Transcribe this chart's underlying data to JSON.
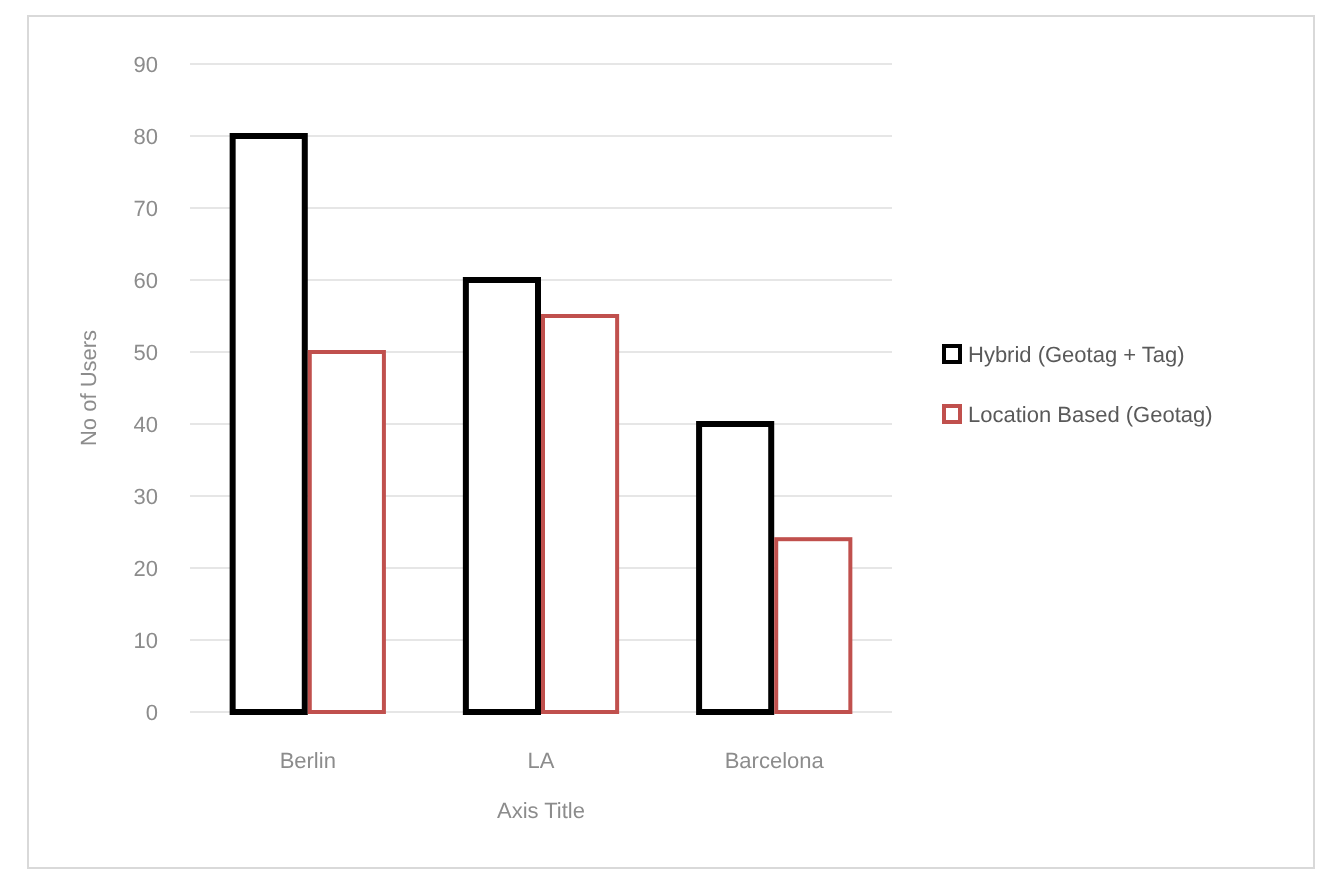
{
  "chart_data": {
    "type": "bar",
    "xlabel": "Axis Title",
    "ylabel": "No of Users",
    "categories": [
      "Berlin",
      "LA",
      "Barcelona"
    ],
    "series": [
      {
        "name": "Hybrid (Geotag + Tag)",
        "color": "#000000",
        "values": [
          80,
          60,
          40
        ]
      },
      {
        "name": "Location Based (Geotag)",
        "color": "#c0504d",
        "values": [
          50,
          55,
          24
        ]
      }
    ],
    "ylim": [
      0,
      90
    ],
    "yticks": [
      0,
      10,
      20,
      30,
      40,
      50,
      60,
      70,
      80,
      90
    ],
    "grid": "y",
    "legend": "right"
  }
}
